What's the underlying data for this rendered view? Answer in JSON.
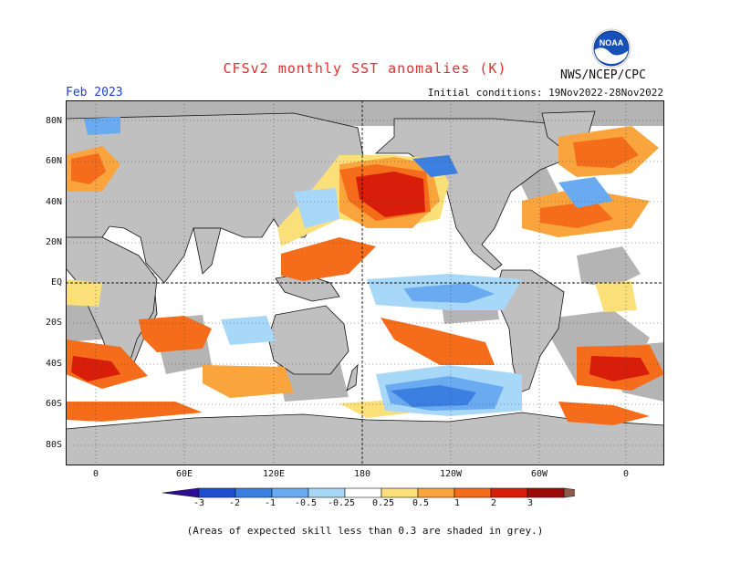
{
  "header": {
    "title": "CFSv2 monthly SST anomalies (K)",
    "agency": "NWS/NCEP/CPC",
    "month": "Feb 2023",
    "initial_conditions": "Initial conditions: 19Nov2022-28Nov2022"
  },
  "logo": {
    "text": "NOAA",
    "icon": "noaa-logo-icon"
  },
  "axes": {
    "lat_labels": [
      "80N",
      "60N",
      "40N",
      "20N",
      "EQ",
      "20S",
      "40S",
      "60S",
      "80S"
    ],
    "lon_labels": [
      "0",
      "60E",
      "120E",
      "180",
      "120W",
      "60W",
      "0"
    ]
  },
  "colorbar": {
    "labels": [
      "-3",
      "-2",
      "-1",
      "-0.5",
      "-0.25",
      "0.25",
      "0.5",
      "1",
      "2",
      "3"
    ],
    "colors": [
      "#2c0f96",
      "#1f4fd1",
      "#3b7fe0",
      "#6aaaf0",
      "#a8d8f8",
      "#ffffff",
      "#fbe07a",
      "#f9a43c",
      "#f56c1a",
      "#d81e0a",
      "#9c0a0a",
      "#8b5a4a"
    ]
  },
  "map_colors": {
    "land": "#c0c0c0",
    "low_skill": "#b4b4b4",
    "neutral": "#ffffff",
    "coast": "#111111"
  },
  "footnote": "(Areas of expected skill less than 0.3 are shaded in grey.)"
}
